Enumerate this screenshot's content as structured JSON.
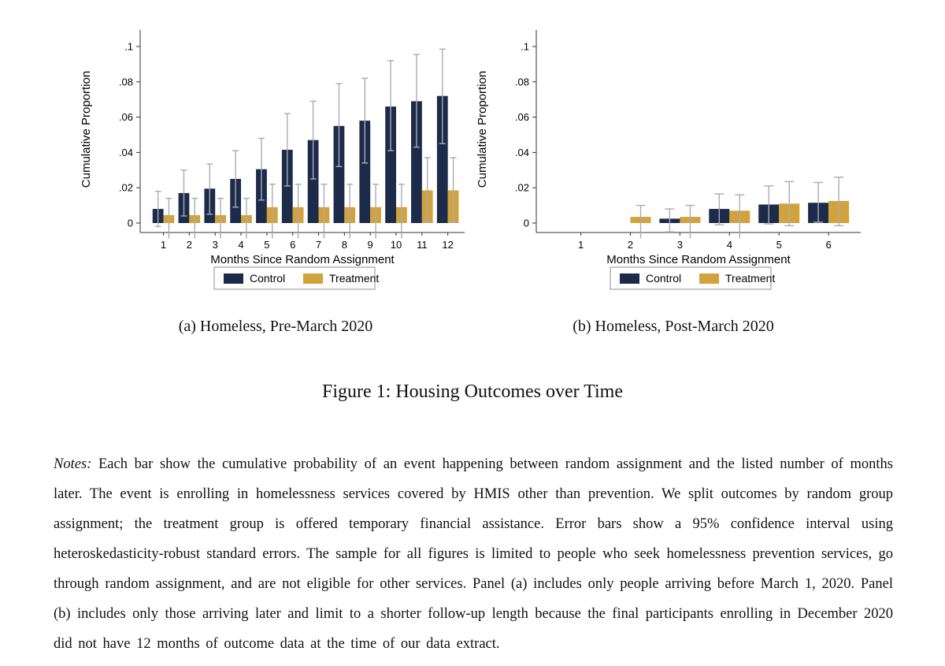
{
  "figure": {
    "title": "Figure 1: Housing Outcomes over Time",
    "panel_a_caption": "(a) Homeless, Pre-March 2020",
    "panel_b_caption": "(b) Homeless, Post-March 2020",
    "notes_label": "Notes:",
    "notes_text": " Each bar show the cumulative probability of an event happening between random assignment and the listed number of months later. The event is enrolling in homelessness services covered by HMIS other than prevention. We split outcomes by random group assignment; the treatment group is offered temporary financial assistance. Error bars show a 95% confidence interval using heteroskedasticity-robust standard errors. The sample for all figures is limited to people who seek homelessness prevention services, go through random assignment, and are not eligible for other services. Panel (a) includes only people arriving before March 1, 2020. Panel (b) includes only those arriving later and limit to a shorter follow-up length because the final participants enrolling in December 2020 did not have 12 months of outcome data at the time of our data extract."
  },
  "colors": {
    "control": "#1c2b4a",
    "treatment": "#d2a23c",
    "error_bar": "#a8adb4",
    "axis": "#333333",
    "legend_border": "#8f8f8f",
    "text": "#000000"
  },
  "chart_data": [
    {
      "id": "panel_a",
      "type": "bar",
      "title": "(a) Homeless, Pre-March 2020",
      "xlabel": "Months Since Random Assignment",
      "ylabel": "Cumulative Proportion",
      "legend": [
        "Control",
        "Treatment"
      ],
      "legend_position": "bottom",
      "grid": false,
      "x": [
        1,
        2,
        3,
        4,
        5,
        6,
        7,
        8,
        9,
        10,
        11,
        12
      ],
      "ylim": [
        0,
        0.1
      ],
      "yticks": [
        0,
        0.02,
        0.04,
        0.06,
        0.08,
        0.1
      ],
      "ytick_labels": [
        "0",
        ".02",
        ".04",
        ".06",
        ".08",
        ".1"
      ],
      "error_bars": "95% confidence interval",
      "series": [
        {
          "name": "Control",
          "color_key": "control",
          "values": [
            0.008,
            0.017,
            0.0195,
            0.025,
            0.0305,
            0.0415,
            0.047,
            0.055,
            0.058,
            0.066,
            0.069,
            0.072
          ],
          "ci_low": [
            -0.002,
            0.004,
            0.005,
            0.009,
            0.013,
            0.021,
            0.025,
            0.032,
            0.034,
            0.041,
            0.043,
            0.045
          ],
          "ci_high": [
            0.018,
            0.03,
            0.0335,
            0.041,
            0.048,
            0.062,
            0.069,
            0.079,
            0.082,
            0.092,
            0.0955,
            0.0985
          ]
        },
        {
          "name": "Treatment",
          "color_key": "treatment",
          "values": [
            0.0045,
            0.0045,
            0.0045,
            0.0045,
            0.009,
            0.009,
            0.009,
            0.009,
            0.009,
            0.009,
            0.0185,
            0.0185
          ],
          "ci_low": [
            -0.009,
            -0.009,
            -0.009,
            -0.009,
            -0.009,
            -0.009,
            -0.009,
            -0.009,
            -0.009,
            -0.009,
            0.0005,
            0.0005
          ],
          "ci_high": [
            0.014,
            0.014,
            0.014,
            0.014,
            0.022,
            0.022,
            0.022,
            0.022,
            0.022,
            0.022,
            0.037,
            0.037
          ]
        }
      ]
    },
    {
      "id": "panel_b",
      "type": "bar",
      "title": "(b) Homeless, Post-March 2020",
      "xlabel": "Months Since Random Assignment",
      "ylabel": "Cumulative Proportion",
      "legend": [
        "Control",
        "Treatment"
      ],
      "legend_position": "bottom",
      "grid": false,
      "x": [
        1,
        2,
        3,
        4,
        5,
        6
      ],
      "ylim": [
        0,
        0.1
      ],
      "yticks": [
        0,
        0.02,
        0.04,
        0.06,
        0.08,
        0.1
      ],
      "ytick_labels": [
        "0",
        ".02",
        ".04",
        ".06",
        ".08",
        ".1"
      ],
      "error_bars": "95% confidence interval",
      "series": [
        {
          "name": "Control",
          "color_key": "control",
          "values": [
            0,
            0,
            0.0025,
            0.008,
            0.0105,
            0.0115
          ],
          "ci_low": [
            null,
            null,
            -0.005,
            -0.001,
            -0.0005,
            0.0005
          ],
          "ci_high": [
            null,
            null,
            0.008,
            0.0165,
            0.021,
            0.023
          ]
        },
        {
          "name": "Treatment",
          "color_key": "treatment",
          "values": [
            0,
            0.0035,
            0.0035,
            0.007,
            0.011,
            0.0125
          ],
          "ci_low": [
            null,
            -0.009,
            -0.009,
            -0.009,
            -0.0015,
            -0.0015
          ],
          "ci_high": [
            null,
            0.01,
            0.01,
            0.016,
            0.0235,
            0.026
          ]
        }
      ]
    }
  ]
}
